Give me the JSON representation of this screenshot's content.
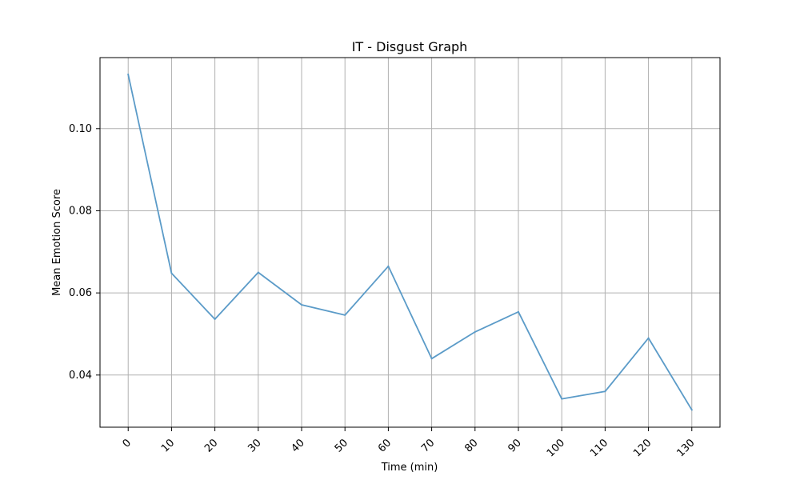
{
  "chart_data": {
    "type": "line",
    "title": "IT - Disgust Graph",
    "xlabel": "Time (min)",
    "ylabel": "Mean Emotion Score",
    "x": [
      0,
      10,
      20,
      30,
      40,
      50,
      60,
      70,
      80,
      90,
      100,
      110,
      120,
      130
    ],
    "x_tick_labels": [
      "0",
      "10",
      "20",
      "30",
      "40",
      "50",
      "60",
      "70",
      "80",
      "90",
      "100",
      "110",
      "120",
      "130"
    ],
    "series": [
      {
        "values": [
          0.1132,
          0.0648,
          0.0536,
          0.065,
          0.0571,
          0.0546,
          0.0665,
          0.044,
          0.0505,
          0.0554,
          0.0342,
          0.036,
          0.049,
          0.0315
        ],
        "color": "#5b9bc8"
      }
    ],
    "y_ticks": [
      0.04,
      0.06,
      0.08,
      0.1
    ],
    "y_tick_labels": [
      "0.04",
      "0.06",
      "0.08",
      "0.10"
    ],
    "xlim": [
      -6.5,
      136.5
    ],
    "ylim": [
      0.0273,
      0.1173
    ],
    "grid": true,
    "x_tick_rotation_deg": 45
  }
}
